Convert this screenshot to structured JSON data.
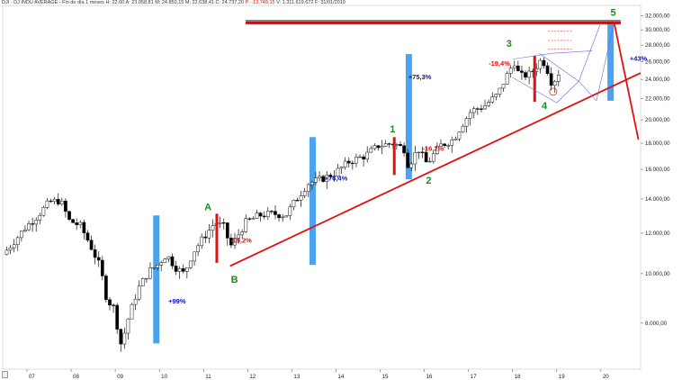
{
  "header": {
    "symbol": "DJI - DJ INDU AVERAGE",
    "period": "Fin de día 1 meses",
    "high_label": "H: 22.60",
    "open_label": "A: 23.058,81",
    "max_label": "M: 24.850,15",
    "min_label": "M: 22.638,41",
    "close_label": "C: 24.737,20",
    "change_label": "P: -13.749,15",
    "volume_label": "V: 1.311.619.672",
    "date_label": "F: 31/01/2019"
  },
  "colors": {
    "up_candle": "#ffffff",
    "down_candle": "#000000",
    "trend_red": "#e01010",
    "bar_blue": "#4aa3f0",
    "wave_green": "#1e8a1e",
    "pct_blue": "#1010b0",
    "pct_red": "#e01010",
    "channel_blue": "#6a6ae8"
  },
  "chart_data": {
    "type": "candlestick",
    "title": "DJI - DJ INDU AVERAGE",
    "scale": "log",
    "ylim": [
      6500,
      33500
    ],
    "y_ticks": [
      8000,
      10000,
      12000,
      14000,
      16000,
      18000,
      20000,
      22000,
      24000,
      26000,
      28000,
      30000,
      32000
    ],
    "y_tick_labels": [
      "8.000,00",
      "10.000,00",
      "12.000,00",
      "14.000,00",
      "16.000,00",
      "18.000,00",
      "20.000,00",
      "22.000,00",
      "24.000,00",
      "26.000,00",
      "28.000,00",
      "30.000,00",
      "32.000,00"
    ],
    "x_ticks": [
      2007,
      2008,
      2009,
      2010,
      2011,
      2012,
      2013,
      2014,
      2015,
      2016,
      2017,
      2018,
      2019,
      2020
    ],
    "x_tick_labels": [
      "07",
      "08",
      "09",
      "10",
      "11",
      "12",
      "13",
      "14",
      "15",
      "16",
      "17",
      "18",
      "19",
      "20"
    ],
    "x_range": [
      2006.45,
      2020.9
    ],
    "price_path": [
      [
        2006.5,
        10900
      ],
      [
        2006.8,
        11700
      ],
      [
        2007.0,
        12300
      ],
      [
        2007.25,
        12900
      ],
      [
        2007.55,
        13800
      ],
      [
        2007.8,
        13900
      ],
      [
        2008.0,
        12700
      ],
      [
        2008.25,
        12400
      ],
      [
        2008.45,
        11500
      ],
      [
        2008.7,
        10300
      ],
      [
        2008.85,
        8900
      ],
      [
        2009.0,
        8600
      ],
      [
        2009.18,
        7200
      ],
      [
        2009.3,
        8000
      ],
      [
        2009.55,
        9300
      ],
      [
        2009.8,
        10100
      ],
      [
        2010.0,
        10400
      ],
      [
        2010.2,
        10900
      ],
      [
        2010.4,
        10300
      ],
      [
        2010.6,
        10000
      ],
      [
        2010.8,
        11000
      ],
      [
        2011.05,
        11800
      ],
      [
        2011.3,
        12600
      ],
      [
        2011.55,
        12300
      ],
      [
        2011.62,
        11200
      ],
      [
        2011.8,
        11800
      ],
      [
        2012.0,
        12600
      ],
      [
        2012.3,
        13000
      ],
      [
        2012.6,
        13100
      ],
      [
        2012.9,
        13000
      ],
      [
        2013.1,
        13800
      ],
      [
        2013.4,
        15000
      ],
      [
        2013.7,
        15300
      ],
      [
        2014.0,
        15700
      ],
      [
        2014.35,
        16600
      ],
      [
        2014.7,
        17000
      ],
      [
        2015.0,
        17800
      ],
      [
        2015.35,
        18000
      ],
      [
        2015.6,
        17500
      ],
      [
        2015.68,
        16200
      ],
      [
        2015.9,
        17600
      ],
      [
        2016.1,
        16400
      ],
      [
        2016.4,
        17800
      ],
      [
        2016.7,
        18300
      ],
      [
        2016.9,
        19600
      ],
      [
        2017.1,
        20800
      ],
      [
        2017.4,
        21300
      ],
      [
        2017.7,
        22400
      ],
      [
        2017.95,
        24800
      ],
      [
        2018.08,
        26000
      ],
      [
        2018.2,
        24300
      ],
      [
        2018.45,
        24600
      ],
      [
        2018.7,
        26300
      ],
      [
        2018.8,
        25500
      ],
      [
        2018.95,
        23300
      ],
      [
        2019.05,
        24700
      ]
    ],
    "horizontal_resistance": {
      "value": 31000,
      "x_start": 2011.95,
      "x_end": 2020.45
    },
    "trendline": {
      "x1": 2011.6,
      "y1": 10350,
      "x2": 2020.9,
      "y2": 24700
    },
    "wave_labels": [
      {
        "label": "A",
        "x": 2011.1,
        "y": 13300
      },
      {
        "label": "B",
        "x": 2011.7,
        "y": 9600
      },
      {
        "label": "1",
        "x": 2015.28,
        "y": 18900
      },
      {
        "label": "2",
        "x": 2016.1,
        "y": 15000
      },
      {
        "label": "3",
        "x": 2017.92,
        "y": 27800
      },
      {
        "label": "4",
        "x": 2018.72,
        "y": 21000
      },
      {
        "label": "5",
        "x": 2020.28,
        "y": 32000
      }
    ],
    "percent_annotations": [
      {
        "text": "+99%",
        "x": 2010.4,
        "y": 8750,
        "color": "blue"
      },
      {
        "text": "+76,4%",
        "x": 2014.0,
        "y": 15200,
        "color": "blue"
      },
      {
        "text": "+75,3%",
        "x": 2015.9,
        "y": 24000,
        "color": "blue"
      },
      {
        "text": "+43%",
        "x": 2020.85,
        "y": 26100,
        "color": "blue"
      },
      {
        "text": "-19,2%",
        "x": 2011.85,
        "y": 11500,
        "color": "red"
      },
      {
        "text": "-16,2%",
        "x": 2016.2,
        "y": 17400,
        "color": "red"
      },
      {
        "text": "-19,4%",
        "x": 2017.7,
        "y": 25500,
        "color": "red"
      }
    ],
    "blue_bars": [
      {
        "x": 2009.93,
        "y_low": 7300,
        "y_high": 13000
      },
      {
        "x": 2013.47,
        "y_low": 10400,
        "y_high": 18500
      },
      {
        "x": 2015.65,
        "y_low": 15300,
        "y_high": 26900
      },
      {
        "x": 2020.22,
        "y_low": 21800,
        "y_high": 31000
      }
    ],
    "red_bars": [
      {
        "x": 2011.3,
        "y_low": 10500,
        "y_high": 13100
      },
      {
        "x": 2015.32,
        "y_low": 15600,
        "y_high": 18500
      },
      {
        "x": 2018.5,
        "y_low": 21700,
        "y_high": 26700
      }
    ]
  }
}
